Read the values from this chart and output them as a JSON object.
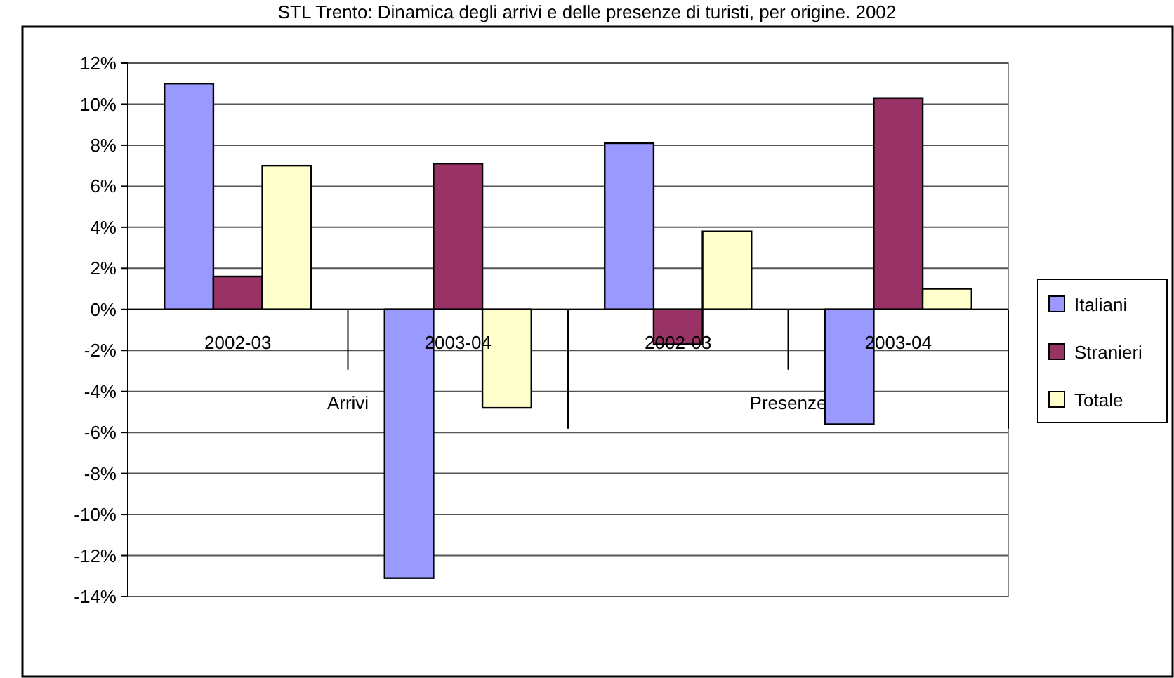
{
  "chart_data": {
    "type": "bar",
    "title": "STL Trento: Dinamica degli arrivi e delle presenze di turisti, per origine. 2002",
    "categories": [
      "2002-03",
      "2003-04",
      "2002-03",
      "2003-04"
    ],
    "annotations": [
      "Arrivi",
      "Presenze"
    ],
    "series": [
      {
        "name": "Italiani",
        "color": "#9999ff",
        "values": [
          11.0,
          -13.1,
          8.1,
          -5.6
        ]
      },
      {
        "name": "Stranieri",
        "color": "#993366",
        "values": [
          1.6,
          7.1,
          -1.7,
          10.3
        ]
      },
      {
        "name": "Totale",
        "color": "#ffffcc",
        "values": [
          7.0,
          -4.8,
          3.8,
          1.0
        ]
      }
    ],
    "ylim": [
      -14,
      12
    ],
    "yticks": [
      {
        "value": -14,
        "label": "-14%"
      },
      {
        "value": -12,
        "label": "-12%"
      },
      {
        "value": -10,
        "label": "-10%"
      },
      {
        "value": -8,
        "label": "-8%"
      },
      {
        "value": -6,
        "label": "-6%"
      },
      {
        "value": -4,
        "label": "-4%"
      },
      {
        "value": -2,
        "label": "-2%"
      },
      {
        "value": 0,
        "label": "0%"
      },
      {
        "value": 2,
        "label": "2%"
      },
      {
        "value": 4,
        "label": "4%"
      },
      {
        "value": 6,
        "label": "6%"
      },
      {
        "value": 8,
        "label": "8%"
      },
      {
        "value": 10,
        "label": "10%"
      },
      {
        "value": 12,
        "label": "12%"
      }
    ],
    "grid": "y",
    "legend": "right"
  }
}
